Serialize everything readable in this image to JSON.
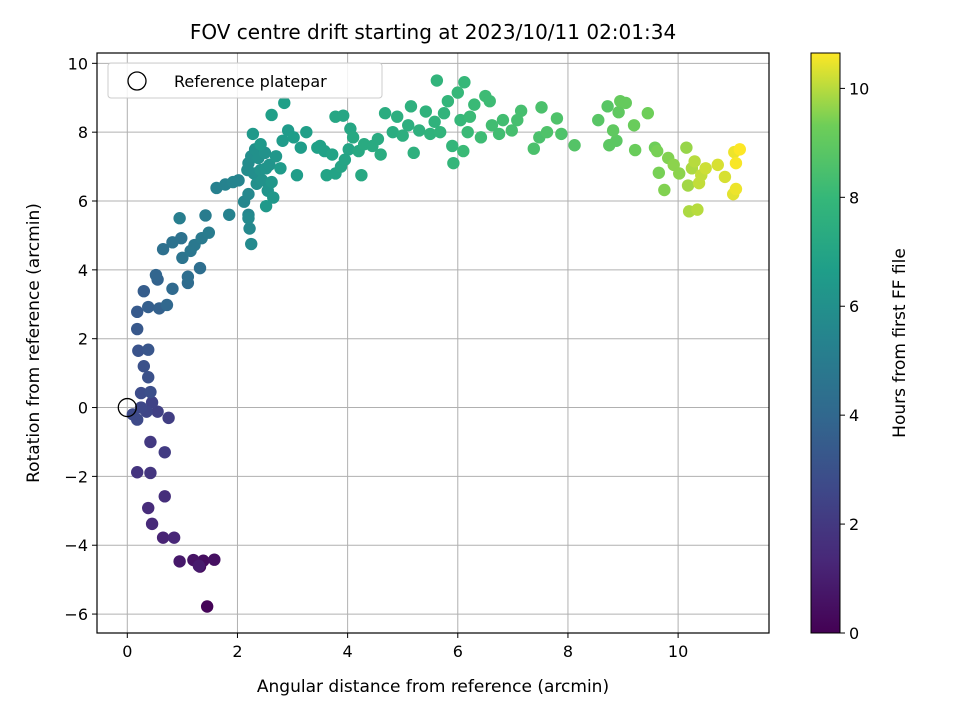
{
  "chart_data": {
    "type": "scatter",
    "title": "FOV centre drift starting at 2023/10/11 02:01:34",
    "xlabel": "Angular distance from reference (arcmin)",
    "ylabel": "Rotation from reference (arcmin)",
    "xlim": [
      -0.55,
      11.65
    ],
    "ylim": [
      -6.55,
      10.3
    ],
    "xticks": [
      0,
      2,
      4,
      6,
      8,
      10
    ],
    "yticks": [
      -6,
      -4,
      -2,
      0,
      2,
      4,
      6,
      8,
      10
    ],
    "grid": true,
    "legend": {
      "placement": "top-left",
      "label": "Reference platepar"
    },
    "reference_point": {
      "x": 0,
      "y": 0
    },
    "colorbar": {
      "label": "Hours from first FF file",
      "range": [
        0,
        10.65
      ],
      "ticks": [
        0,
        2,
        4,
        6,
        8,
        10
      ],
      "colormap": "viridis"
    },
    "points": [
      [
        1.45,
        -5.78,
        0.1
      ],
      [
        1.32,
        -4.62,
        0.3
      ],
      [
        1.38,
        -4.45,
        0.4
      ],
      [
        1.58,
        -4.42,
        0.5
      ],
      [
        1.2,
        -4.43,
        0.6
      ],
      [
        0.95,
        -4.47,
        0.8
      ],
      [
        1.3,
        -4.6,
        0.9
      ],
      [
        0.65,
        -3.78,
        1.2
      ],
      [
        0.85,
        -3.78,
        1.3
      ],
      [
        0.45,
        -3.38,
        1.4
      ],
      [
        0.38,
        -2.92,
        1.5
      ],
      [
        0.68,
        -2.58,
        1.6
      ],
      [
        0.18,
        -1.88,
        1.8
      ],
      [
        0.42,
        -1.9,
        1.9
      ],
      [
        0.42,
        -1.0,
        2.0
      ],
      [
        0.68,
        -1.3,
        2.1
      ],
      [
        0.75,
        -0.3,
        2.2
      ],
      [
        0.55,
        -0.12,
        2.3
      ],
      [
        0.45,
        0.15,
        2.4
      ],
      [
        0.35,
        -0.12,
        2.5
      ],
      [
        0.25,
        0.0,
        2.6
      ],
      [
        0.18,
        -0.35,
        2.7
      ],
      [
        0.1,
        -0.2,
        2.7
      ],
      [
        0.25,
        0.42,
        2.8
      ],
      [
        0.42,
        0.45,
        2.9
      ],
      [
        0.38,
        0.88,
        3.0
      ],
      [
        0.3,
        1.2,
        3.0
      ],
      [
        0.2,
        1.65,
        3.1
      ],
      [
        0.38,
        1.68,
        3.2
      ],
      [
        0.18,
        2.28,
        3.3
      ],
      [
        0.18,
        2.78,
        3.4
      ],
      [
        0.3,
        3.38,
        3.5
      ],
      [
        0.38,
        2.92,
        3.6
      ],
      [
        0.58,
        2.88,
        3.7
      ],
      [
        0.55,
        3.72,
        3.8
      ],
      [
        0.52,
        3.85,
        3.9
      ],
      [
        0.72,
        2.98,
        4.0
      ],
      [
        0.82,
        3.45,
        4.1
      ],
      [
        1.1,
        3.62,
        4.2
      ],
      [
        1.1,
        3.8,
        4.3
      ],
      [
        1.32,
        4.05,
        4.3
      ],
      [
        0.65,
        4.6,
        4.4
      ],
      [
        0.82,
        4.8,
        4.5
      ],
      [
        0.98,
        4.92,
        4.5
      ],
      [
        1.0,
        4.35,
        4.6
      ],
      [
        1.15,
        4.55,
        4.7
      ],
      [
        1.22,
        4.72,
        4.8
      ],
      [
        1.35,
        4.92,
        4.9
      ],
      [
        1.48,
        5.08,
        5.0
      ],
      [
        1.42,
        5.58,
        5.0
      ],
      [
        0.95,
        5.5,
        5.1
      ],
      [
        1.62,
        6.38,
        5.2
      ],
      [
        1.78,
        6.48,
        5.3
      ],
      [
        1.85,
        5.6,
        5.3
      ],
      [
        1.92,
        6.55,
        5.4
      ],
      [
        2.02,
        6.6,
        5.4
      ],
      [
        2.12,
        5.98,
        5.5
      ],
      [
        2.2,
        5.6,
        5.5
      ],
      [
        2.2,
        6.2,
        5.6
      ],
      [
        2.22,
        5.2,
        5.6
      ],
      [
        2.2,
        5.5,
        5.7
      ],
      [
        2.25,
        4.75,
        5.7
      ],
      [
        2.18,
        6.9,
        5.8
      ],
      [
        2.2,
        7.1,
        5.8
      ],
      [
        2.25,
        7.3,
        5.9
      ],
      [
        2.3,
        6.8,
        5.9
      ],
      [
        2.32,
        7.5,
        6.0
      ],
      [
        2.35,
        6.5,
        6.0
      ],
      [
        2.38,
        7.25,
        6.0
      ],
      [
        2.42,
        6.9,
        6.1
      ],
      [
        2.45,
        6.6,
        6.1
      ],
      [
        2.5,
        7.4,
        6.1
      ],
      [
        2.52,
        6.95,
        6.2
      ],
      [
        2.55,
        6.3,
        6.2
      ],
      [
        2.58,
        7.05,
        6.2
      ],
      [
        2.62,
        6.55,
        6.3
      ],
      [
        2.65,
        6.1,
        6.3
      ],
      [
        2.7,
        7.3,
        6.3
      ],
      [
        2.28,
        7.95,
        6.4
      ],
      [
        2.52,
        5.85,
        6.4
      ],
      [
        2.42,
        7.65,
        6.4
      ],
      [
        2.78,
        6.95,
        6.5
      ],
      [
        2.82,
        7.75,
        6.5
      ],
      [
        2.92,
        8.05,
        6.5
      ],
      [
        3.02,
        7.85,
        6.6
      ],
      [
        3.15,
        7.55,
        6.6
      ],
      [
        3.08,
        6.75,
        6.6
      ],
      [
        2.62,
        8.5,
        6.7
      ],
      [
        2.85,
        8.85,
        6.7
      ],
      [
        3.25,
        8.0,
        6.7
      ],
      [
        3.45,
        7.55,
        6.8
      ],
      [
        3.5,
        7.6,
        6.8
      ],
      [
        3.58,
        7.45,
        6.8
      ],
      [
        3.72,
        7.35,
        6.9
      ],
      [
        3.62,
        6.75,
        6.9
      ],
      [
        3.78,
        6.8,
        6.9
      ],
      [
        3.88,
        7.0,
        7.0
      ],
      [
        3.95,
        7.2,
        7.0
      ],
      [
        4.02,
        7.5,
        7.0
      ],
      [
        3.78,
        8.45,
        7.1
      ],
      [
        3.92,
        8.48,
        7.1
      ],
      [
        4.05,
        8.1,
        7.1
      ],
      [
        4.1,
        7.85,
        7.2
      ],
      [
        4.2,
        7.45,
        7.2
      ],
      [
        4.25,
        6.75,
        7.2
      ],
      [
        4.3,
        7.65,
        7.3
      ],
      [
        4.45,
        7.6,
        7.3
      ],
      [
        4.55,
        7.8,
        7.3
      ],
      [
        4.6,
        7.35,
        7.4
      ],
      [
        4.68,
        8.55,
        7.4
      ],
      [
        4.82,
        8.0,
        7.4
      ],
      [
        4.9,
        8.45,
        7.5
      ],
      [
        5.0,
        7.9,
        7.5
      ],
      [
        5.1,
        8.2,
        7.5
      ],
      [
        5.15,
        8.75,
        7.6
      ],
      [
        5.2,
        7.4,
        7.6
      ],
      [
        5.3,
        8.05,
        7.6
      ],
      [
        5.42,
        8.6,
        7.7
      ],
      [
        5.5,
        7.95,
        7.7
      ],
      [
        5.58,
        8.3,
        7.7
      ],
      [
        5.62,
        9.5,
        7.8
      ],
      [
        5.68,
        8.0,
        7.8
      ],
      [
        5.75,
        8.55,
        7.8
      ],
      [
        5.82,
        8.9,
        7.9
      ],
      [
        5.9,
        7.6,
        7.9
      ],
      [
        5.92,
        7.1,
        7.9
      ],
      [
        6.0,
        9.15,
        8.0
      ],
      [
        6.05,
        8.35,
        8.0
      ],
      [
        6.12,
        9.45,
        8.0
      ],
      [
        6.1,
        7.45,
        8.1
      ],
      [
        6.18,
        8.0,
        8.1
      ],
      [
        6.22,
        8.45,
        8.1
      ],
      [
        6.3,
        8.8,
        8.1
      ],
      [
        6.42,
        7.85,
        8.2
      ],
      [
        6.5,
        9.05,
        8.2
      ],
      [
        6.58,
        8.9,
        8.2
      ],
      [
        6.62,
        8.2,
        8.3
      ],
      [
        6.75,
        7.95,
        8.3
      ],
      [
        6.82,
        8.35,
        8.3
      ],
      [
        6.98,
        8.05,
        8.4
      ],
      [
        7.08,
        8.35,
        8.4
      ],
      [
        7.15,
        8.62,
        8.4
      ],
      [
        7.38,
        7.52,
        8.5
      ],
      [
        7.48,
        7.85,
        8.5
      ],
      [
        7.52,
        8.72,
        8.5
      ],
      [
        7.62,
        8.0,
        8.6
      ],
      [
        7.8,
        8.4,
        8.6
      ],
      [
        7.88,
        7.95,
        8.6
      ],
      [
        8.12,
        7.62,
        8.7
      ],
      [
        8.55,
        8.35,
        8.8
      ],
      [
        8.72,
        8.75,
        8.8
      ],
      [
        8.75,
        7.62,
        8.9
      ],
      [
        8.88,
        7.75,
        8.9
      ],
      [
        8.82,
        8.05,
        9.0
      ],
      [
        8.92,
        8.58,
        9.0
      ],
      [
        8.95,
        8.9,
        9.1
      ],
      [
        9.05,
        8.85,
        9.1
      ],
      [
        9.2,
        8.2,
        9.2
      ],
      [
        9.22,
        7.48,
        9.2
      ],
      [
        9.45,
        8.55,
        9.3
      ],
      [
        9.58,
        7.55,
        9.3
      ],
      [
        9.62,
        7.45,
        9.4
      ],
      [
        9.65,
        6.82,
        9.4
      ],
      [
        9.75,
        6.32,
        9.5
      ],
      [
        9.82,
        7.25,
        9.5
      ],
      [
        9.92,
        7.05,
        9.6
      ],
      [
        10.02,
        6.8,
        9.6
      ],
      [
        10.15,
        7.55,
        9.7
      ],
      [
        10.18,
        6.45,
        9.8
      ],
      [
        10.2,
        5.7,
        9.9
      ],
      [
        10.25,
        6.95,
        9.9
      ],
      [
        10.3,
        7.15,
        10.0
      ],
      [
        10.35,
        5.75,
        10.0
      ],
      [
        10.38,
        6.52,
        10.1
      ],
      [
        10.42,
        6.75,
        10.1
      ],
      [
        10.5,
        6.95,
        10.2
      ],
      [
        10.72,
        7.05,
        10.3
      ],
      [
        10.85,
        6.7,
        10.3
      ],
      [
        11.0,
        6.2,
        10.4
      ],
      [
        11.02,
        7.42,
        10.5
      ],
      [
        11.05,
        6.35,
        10.5
      ],
      [
        11.05,
        7.1,
        10.6
      ],
      [
        11.12,
        7.5,
        10.65
      ]
    ]
  }
}
